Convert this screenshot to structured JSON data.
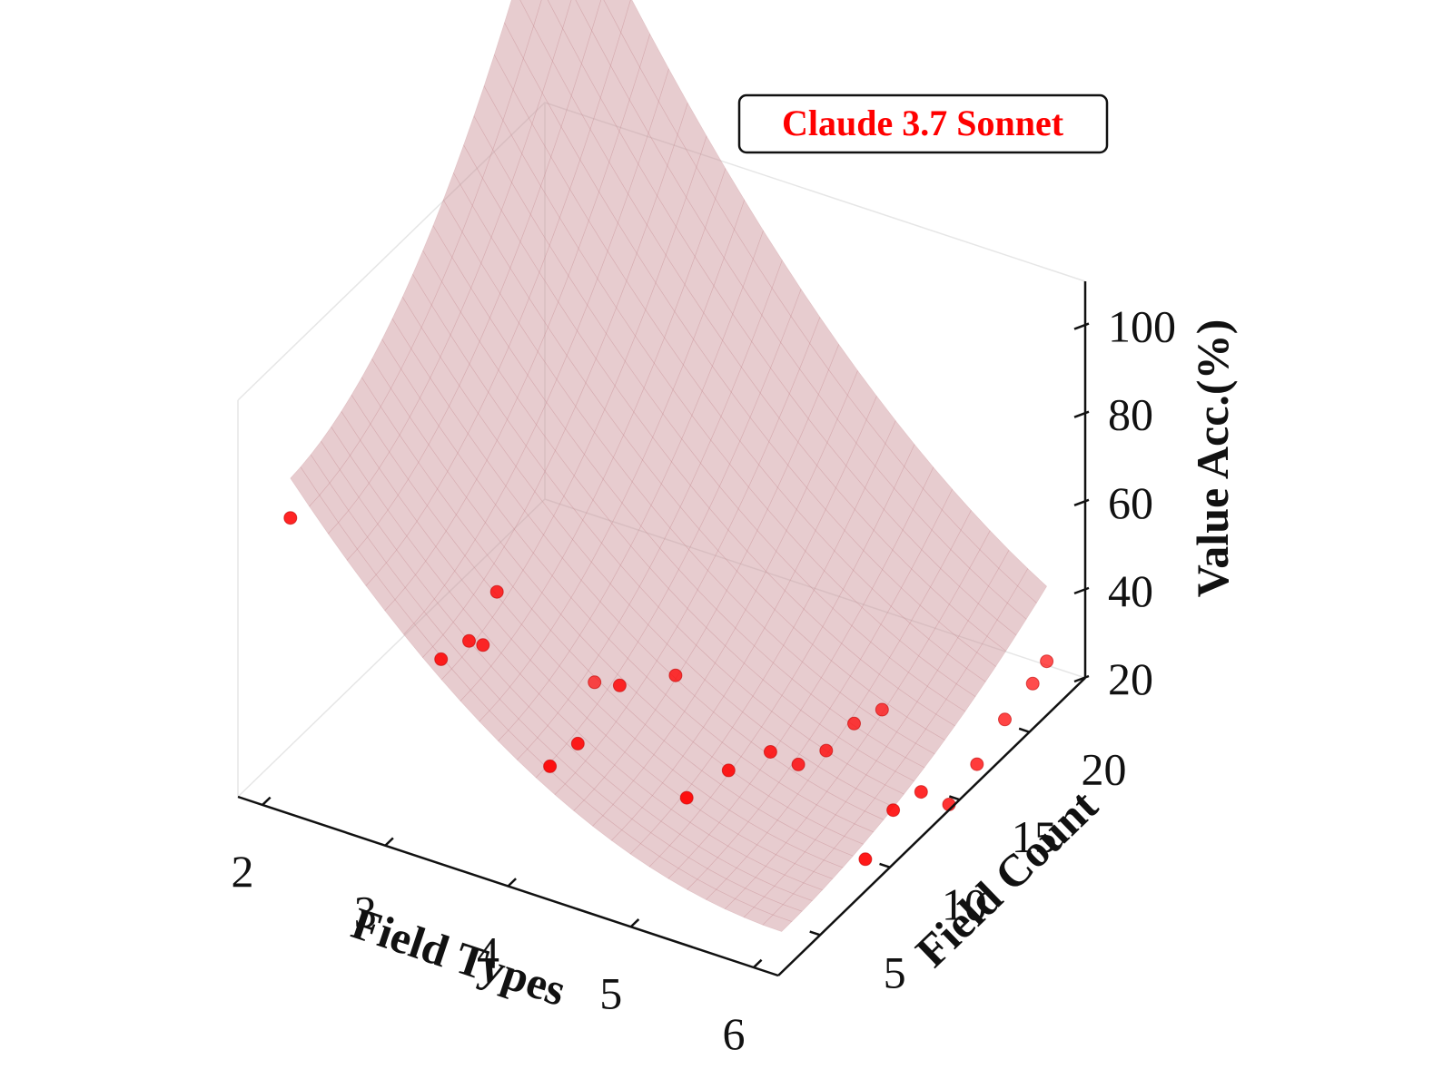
{
  "chart_data": {
    "type": "surface3d",
    "legend": {
      "label": "Claude 3.7 Sonnet",
      "placement": "top-right"
    },
    "x_axis": {
      "label": "Field Types",
      "ticks": [
        2,
        3,
        4,
        5,
        6
      ]
    },
    "y_axis": {
      "label": "Field Count",
      "ticks": [
        5,
        10,
        15,
        20
      ]
    },
    "z_axis": {
      "label": "Value Acc.(%)",
      "ticks": [
        20,
        40,
        60,
        80,
        100
      ]
    },
    "colors": {
      "surface": "#c98f95",
      "points": "#ff0000",
      "legend_text": "#ff0000"
    },
    "points": [
      [
        2,
        4,
        79
      ],
      [
        3,
        6,
        50
      ],
      [
        3,
        8,
        48
      ],
      [
        3,
        9,
        44
      ],
      [
        3,
        10,
        53
      ],
      [
        4,
        5,
        38
      ],
      [
        4,
        7,
        37
      ],
      [
        4,
        10,
        41
      ],
      [
        5,
        6,
        37
      ],
      [
        5,
        9,
        34
      ],
      [
        5,
        12,
        29
      ],
      [
        4,
        14,
        31
      ],
      [
        5,
        14,
        20
      ],
      [
        5,
        16,
        17
      ],
      [
        6,
        12,
        25
      ],
      [
        6,
        14,
        23
      ],
      [
        5,
        18,
        17
      ],
      [
        6,
        16,
        14
      ],
      [
        6,
        18,
        17
      ],
      [
        6,
        20,
        21
      ],
      [
        6,
        22,
        23
      ],
      [
        6,
        23,
        25
      ],
      [
        3,
        17,
        11
      ],
      [
        6,
        10,
        20
      ],
      [
        5,
        20,
        14
      ]
    ]
  }
}
